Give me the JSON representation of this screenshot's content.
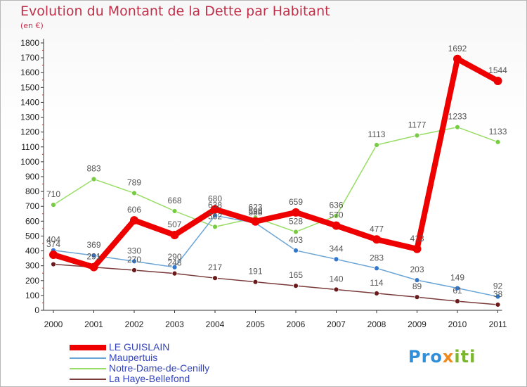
{
  "chart_data": {
    "type": "line",
    "title": "Evolution du Montant de la Dette par Habitant",
    "subtitle": "(en €)",
    "x": [
      "2000",
      "2001",
      "2002",
      "2003",
      "2004",
      "2005",
      "2006",
      "2007",
      "2008",
      "2009",
      "2010",
      "2011"
    ],
    "ylim": [
      0,
      1800
    ],
    "yticks": [
      0,
      100,
      200,
      300,
      400,
      500,
      600,
      700,
      800,
      900,
      1000,
      1100,
      1200,
      1300,
      1400,
      1500,
      1600,
      1700,
      1800
    ],
    "grid": false,
    "legend_position": "bottom-left",
    "series": [
      {
        "name": "Notre-Dame-de-Cenilly",
        "color": "#99dd66",
        "marker": "#77cc44",
        "values": [
          710,
          883,
          789,
          668,
          562,
          623,
          528,
          636,
          1113,
          1177,
          1233,
          1133
        ]
      },
      {
        "name": "Maupertuis",
        "color": "#6aa5d6",
        "marker": "#3377cc",
        "values": [
          404,
          369,
          330,
          290,
          638,
          588,
          403,
          344,
          283,
          203,
          149,
          92
        ]
      },
      {
        "name": "La Haye-Bellefond",
        "color": "#7a3a3a",
        "marker": "#6a1a1a",
        "values": [
          310,
          290,
          270,
          248,
          217,
          191,
          165,
          140,
          114,
          89,
          61,
          38
        ]
      },
      {
        "name": "LE GUISLAIN",
        "color": "#ee0000",
        "marker": "#ee0000",
        "values": [
          374,
          291,
          606,
          507,
          680,
          598,
          659,
          570,
          477,
          413,
          1692,
          1544
        ]
      }
    ],
    "data_labels": [
      {
        "series": "Notre-Dame-de-Cenilly",
        "labels": [
          "710",
          "883",
          "789",
          "668",
          "562",
          "623",
          "528",
          "636",
          "1113",
          "1177",
          "1233",
          "1133"
        ]
      },
      {
        "series": "Maupertuis",
        "labels": [
          "404",
          "369",
          "330",
          "290",
          "638",
          "588",
          "403",
          "344",
          "283",
          "203",
          "149",
          "92"
        ]
      },
      {
        "series": "La Haye-Bellefond",
        "labels": [
          "",
          "",
          "270",
          "248",
          "217",
          "191",
          "165",
          "140",
          "114",
          "89",
          "61",
          "38"
        ]
      },
      {
        "series": "LE GUISLAIN",
        "labels": [
          "374",
          "291",
          "606",
          "507",
          "680",
          "598",
          "659",
          "570",
          "477",
          "413",
          "1692",
          "1544"
        ]
      }
    ]
  },
  "legend": {
    "items": [
      {
        "label": "LE GUISLAIN",
        "color": "#ee0000"
      },
      {
        "label": "Maupertuis",
        "color": "#6aa5d6"
      },
      {
        "label": "Notre-Dame-de-Cenilly",
        "color": "#99dd66"
      },
      {
        "label": "La Haye-Bellefond",
        "color": "#7a3a3a"
      }
    ]
  },
  "logo": {
    "part1": "Pro",
    "part2": "x",
    "part3": "iti"
  }
}
